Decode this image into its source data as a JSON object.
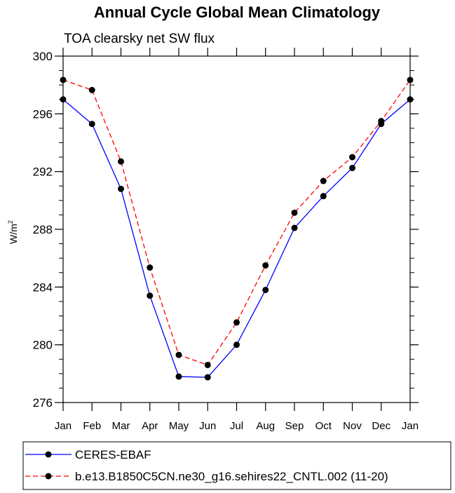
{
  "chart_data": {
    "type": "line",
    "title": "Annual Cycle Global Mean Climatology",
    "subtitle": "TOA clearsky net SW flux",
    "xlabel": "",
    "ylabel": "W/m",
    "ylabel_superscript": "2",
    "categories": [
      "Jan",
      "Feb",
      "Mar",
      "Apr",
      "May",
      "Jun",
      "Jul",
      "Aug",
      "Sep",
      "Oct",
      "Nov",
      "Dec",
      "Jan"
    ],
    "ylim": [
      276,
      300
    ],
    "yticks": [
      276,
      280,
      284,
      288,
      292,
      296,
      300
    ],
    "yticks_minor_step": 1,
    "series": [
      {
        "name": "CERES-EBAF",
        "color": "#0000ff",
        "dash": "solid",
        "values": [
          297.0,
          295.3,
          290.8,
          283.4,
          277.8,
          277.75,
          280.0,
          283.8,
          288.1,
          290.3,
          292.25,
          295.3,
          297.0
        ]
      },
      {
        "name": "b.e13.B1850C5CN.ne30_g16.sehires22_CNTL.002 (11-20)",
        "color": "#ff0000",
        "dash": "dashed",
        "values": [
          298.35,
          297.65,
          292.7,
          285.35,
          279.3,
          278.6,
          281.55,
          285.5,
          289.15,
          291.35,
          293.0,
          295.5,
          298.35
        ]
      }
    ]
  }
}
